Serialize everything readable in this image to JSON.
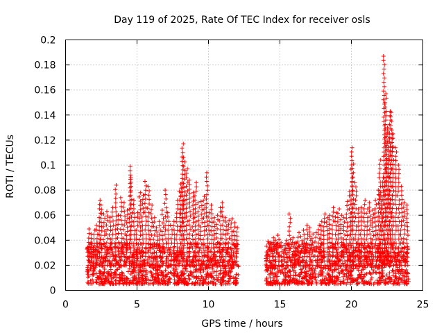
{
  "chart_data": {
    "type": "scatter",
    "title": "Day 119 of 2025, Rate Of TEC Index for receiver osls",
    "xlabel": "GPS time / hours",
    "ylabel": "ROTI / TECUs",
    "xlim": [
      0,
      25
    ],
    "ylim": [
      0,
      0.2
    ],
    "x_ticks": [
      0,
      5,
      10,
      15,
      20,
      25
    ],
    "x_tick_labels": [
      "0",
      "5",
      "10",
      "15",
      "20",
      "25"
    ],
    "y_ticks": [
      0,
      0.02,
      0.04,
      0.06,
      0.08,
      0.1,
      0.12,
      0.14,
      0.16,
      0.18,
      0.2
    ],
    "y_tick_labels": [
      "0",
      "0.02",
      "0.04",
      "0.06",
      "0.08",
      "0.1",
      "0.12",
      "0.14",
      "0.16",
      "0.18",
      "0.2"
    ],
    "grid": true,
    "marker": "plus",
    "series_color": "#ff0000",
    "series": [
      {
        "name": "ROTI",
        "x": [
          1.6,
          1.8,
          2.0,
          2.2,
          2.4,
          2.5,
          2.7,
          2.9,
          3.1,
          3.3,
          3.5,
          3.7,
          3.9,
          4.1,
          4.3,
          4.5,
          4.6,
          4.8,
          5.0,
          5.2,
          5.4,
          5.6,
          5.8,
          6.0,
          6.2,
          6.4,
          6.6,
          6.8,
          7.0,
          7.2,
          7.4,
          7.6,
          7.8,
          8.0,
          8.1,
          8.2,
          8.3,
          8.5,
          8.7,
          8.9,
          9.1,
          9.3,
          9.5,
          9.7,
          9.9,
          10.0,
          10.2,
          10.4,
          10.6,
          10.8,
          11.0,
          11.2,
          11.4,
          11.6,
          11.8,
          12.0,
          14.1,
          14.3,
          14.5,
          14.7,
          14.9,
          15.1,
          15.3,
          15.5,
          15.7,
          15.9,
          16.1,
          16.3,
          16.5,
          16.7,
          16.9,
          17.1,
          17.3,
          17.5,
          17.7,
          17.9,
          18.1,
          18.3,
          18.5,
          18.7,
          18.9,
          19.1,
          19.3,
          19.5,
          19.7,
          19.9,
          20.0,
          20.1,
          20.3,
          20.5,
          20.7,
          20.9,
          21.1,
          21.3,
          21.5,
          21.7,
          21.9,
          22.0,
          22.1,
          22.2,
          22.3,
          22.4,
          22.5,
          22.6,
          22.7,
          22.8,
          22.9,
          23.1,
          23.3,
          23.5,
          23.7,
          23.9,
          1.7,
          2.6,
          3.4,
          4.2,
          4.5,
          5.3,
          5.5,
          6.1,
          6.7,
          7.3,
          7.9,
          8.4,
          8.8,
          9.2,
          9.6,
          10.0,
          10.5,
          11.1,
          11.7,
          14.4,
          15.2,
          16.0,
          16.8,
          17.6,
          18.4,
          19.2,
          19.8,
          20.2,
          20.6,
          21.0,
          21.4,
          21.8,
          22.3,
          22.6,
          23.0,
          23.4,
          23.8
        ],
        "y": [
          0.049,
          0.045,
          0.048,
          0.052,
          0.072,
          0.068,
          0.061,
          0.063,
          0.058,
          0.066,
          0.084,
          0.06,
          0.074,
          0.07,
          0.064,
          0.099,
          0.09,
          0.072,
          0.062,
          0.078,
          0.076,
          0.087,
          0.083,
          0.068,
          0.058,
          0.05,
          0.055,
          0.064,
          0.08,
          0.062,
          0.052,
          0.055,
          0.072,
          0.079,
          0.085,
          0.117,
          0.106,
          0.097,
          0.088,
          0.078,
          0.086,
          0.07,
          0.071,
          0.075,
          0.094,
          0.062,
          0.068,
          0.058,
          0.06,
          0.066,
          0.07,
          0.058,
          0.056,
          0.057,
          0.054,
          0.05,
          0.039,
          0.038,
          0.042,
          0.04,
          0.044,
          0.038,
          0.036,
          0.04,
          0.061,
          0.042,
          0.038,
          0.046,
          0.043,
          0.048,
          0.052,
          0.05,
          0.045,
          0.046,
          0.052,
          0.055,
          0.061,
          0.058,
          0.06,
          0.066,
          0.062,
          0.065,
          0.06,
          0.058,
          0.071,
          0.079,
          0.114,
          0.101,
          0.086,
          0.065,
          0.066,
          0.072,
          0.065,
          0.07,
          0.064,
          0.072,
          0.08,
          0.104,
          0.078,
          0.09,
          0.187,
          0.157,
          0.13,
          0.128,
          0.143,
          0.142,
          0.125,
          0.114,
          0.1,
          0.083,
          0.07,
          0.068,
          0.03,
          0.025,
          0.028,
          0.022,
          0.026,
          0.02,
          0.024,
          0.021,
          0.027,
          0.02,
          0.03,
          0.025,
          0.022,
          0.028,
          0.021,
          0.026,
          0.024,
          0.019,
          0.022,
          0.018,
          0.02,
          0.021,
          0.022,
          0.024,
          0.025,
          0.028,
          0.03,
          0.025,
          0.029,
          0.033,
          0.027,
          0.036,
          0.04,
          0.028,
          0.03,
          0.024,
          0.025
        ]
      }
    ],
    "baseline": {
      "note": "dense band of points drawn between segments",
      "segments": [
        [
          1.5,
          12.1
        ],
        [
          14.0,
          24.0
        ]
      ],
      "y_range": [
        0.005,
        0.038
      ]
    }
  }
}
